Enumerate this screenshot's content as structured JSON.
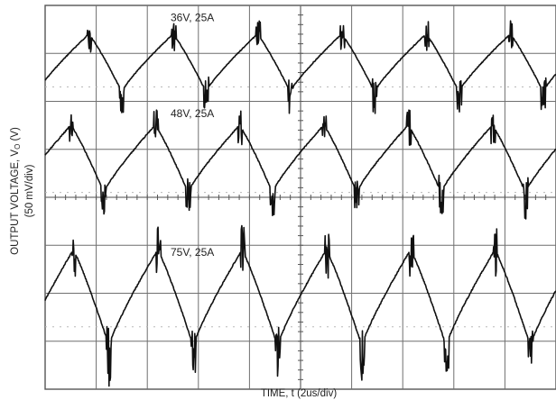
{
  "chart_data": {
    "type": "line",
    "title": "",
    "xlabel": "TIME, t (2us/div)",
    "ylabel_main": "OUTPUT VOLTAGE, V",
    "ylabel_sub": "O",
    "ylabel_unit": " (V)",
    "ylabel_scale": "(50 mV/div)",
    "x_divisions": 10,
    "y_divisions": 8,
    "x_div_us": 2,
    "y_div_mV": 50,
    "ripple_period_us": 3.3,
    "grid": true,
    "series": [
      {
        "name": "36V, 25A",
        "baseline_div": 1.2,
        "amplitude_mV_pp": 60,
        "first_peak_us": 1.7,
        "valley_offset_us": 1.3,
        "noise": 0.25
      },
      {
        "name": "48V, 25A",
        "baseline_div": 3.2,
        "amplitude_mV_pp": 70,
        "first_peak_us": 1.0,
        "valley_offset_us": 1.3,
        "noise": 0.3
      },
      {
        "name": "75V, 25A",
        "baseline_div": 6.1,
        "amplitude_mV_pp": 100,
        "first_peak_us": 1.1,
        "valley_offset_us": 1.4,
        "noise": 0.35
      }
    ],
    "colors": {
      "trace": "#111111",
      "grid": "#6f6f6f",
      "axis": "#555555",
      "bg": "#ffffff"
    }
  }
}
